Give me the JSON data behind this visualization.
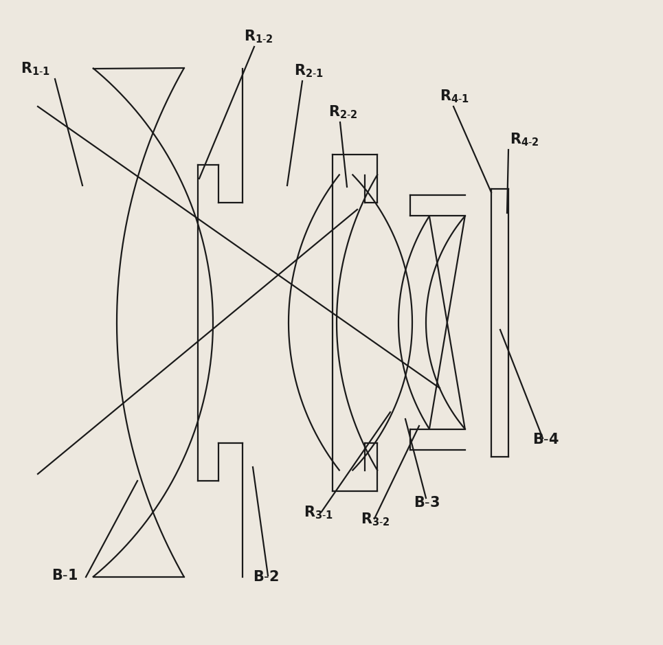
{
  "bg_color": "#ede8df",
  "line_color": "#1a1a1a",
  "lw": 1.6,
  "fig_w": 9.65,
  "fig_h": 9.39,
  "dpi": 100
}
